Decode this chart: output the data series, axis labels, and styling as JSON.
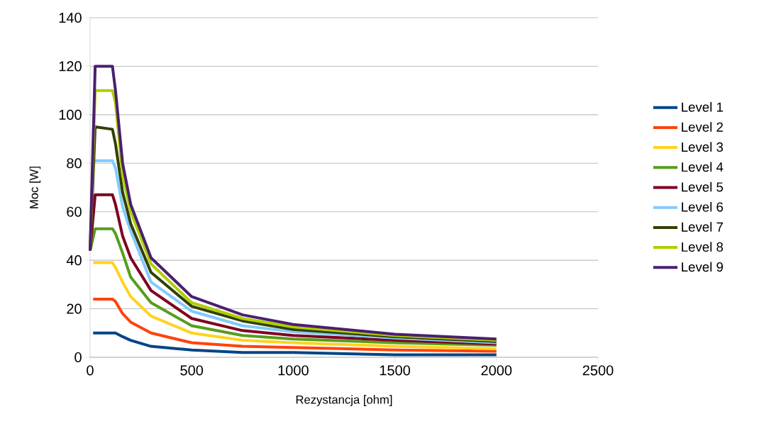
{
  "chart_data": {
    "type": "line",
    "xlabel": "Rezystancja [ohm]",
    "ylabel": "Moc [W]",
    "xlim": [
      0,
      2500
    ],
    "xticks": [
      0,
      500,
      1000,
      1500,
      2000,
      2500
    ],
    "ylim": [
      0,
      140
    ],
    "yticks": [
      0,
      20,
      40,
      60,
      80,
      100,
      120,
      140
    ],
    "grid": "y",
    "legend": "right",
    "marker": "none",
    "line_style": "solid",
    "series": [
      {
        "name": "Level 1",
        "color": "#004586",
        "x": [
          15,
          25,
          110,
          125,
          160,
          200,
          300,
          500,
          750,
          1000,
          1500,
          2000
        ],
        "values": [
          10,
          10,
          10,
          10,
          8.5,
          7,
          4.5,
          3,
          2,
          2,
          1,
          1
        ]
      },
      {
        "name": "Level 2",
        "color": "#ff420e",
        "x": [
          15,
          25,
          110,
          125,
          160,
          200,
          300,
          500,
          750,
          1000,
          1500,
          2000
        ],
        "values": [
          24,
          24,
          24,
          23,
          18,
          14.5,
          10,
          6,
          4.5,
          4,
          3,
          2.5
        ]
      },
      {
        "name": "Level 3",
        "color": "#ffd320",
        "x": [
          15,
          25,
          110,
          125,
          160,
          200,
          300,
          500,
          750,
          1000,
          1500,
          2000
        ],
        "values": [
          39,
          39,
          39,
          37,
          31,
          25,
          17,
          10,
          7,
          6,
          4.5,
          3.5
        ]
      },
      {
        "name": "Level 4",
        "color": "#579d1c",
        "x": [
          0,
          25,
          110,
          125,
          160,
          200,
          300,
          500,
          750,
          1000,
          1500,
          2000
        ],
        "values": [
          44,
          53,
          53,
          51,
          43,
          33,
          22.5,
          13,
          9,
          7.5,
          6,
          5
        ]
      },
      {
        "name": "Level 5",
        "color": "#7e0021",
        "x": [
          0,
          25,
          110,
          125,
          160,
          200,
          300,
          500,
          750,
          1000,
          1500,
          2000
        ],
        "values": [
          44,
          67,
          67,
          63,
          50,
          41,
          27.5,
          16,
          11,
          9,
          7,
          5.5
        ]
      },
      {
        "name": "Level 6",
        "color": "#83caff",
        "x": [
          25,
          110,
          125,
          160,
          200,
          300,
          500,
          750,
          1000,
          1500,
          2000
        ],
        "values": [
          81,
          81,
          78,
          62,
          52,
          31,
          19,
          13,
          10.5,
          8,
          6
        ]
      },
      {
        "name": "Level 7",
        "color": "#314004",
        "x": [
          0,
          25,
          110,
          125,
          160,
          200,
          300,
          500,
          750,
          1000,
          1500,
          2000
        ],
        "values": [
          44,
          95,
          94,
          88,
          68,
          55,
          35,
          21,
          15,
          11.5,
          8.5,
          6.5
        ]
      },
      {
        "name": "Level 8",
        "color": "#aecf00",
        "x": [
          0,
          25,
          110,
          125,
          160,
          200,
          300,
          500,
          750,
          1000,
          1500,
          2000
        ],
        "values": [
          44,
          110,
          110,
          105,
          75,
          60,
          38.5,
          22.5,
          16,
          12.5,
          9,
          7
        ]
      },
      {
        "name": "Level 9",
        "color": "#4b1f6f",
        "x": [
          0,
          25,
          110,
          125,
          160,
          200,
          300,
          500,
          750,
          1000,
          1500,
          2000
        ],
        "values": [
          44,
          120,
          120,
          110,
          80,
          63,
          41,
          25,
          17.5,
          13.5,
          9.5,
          7.5
        ]
      }
    ]
  }
}
